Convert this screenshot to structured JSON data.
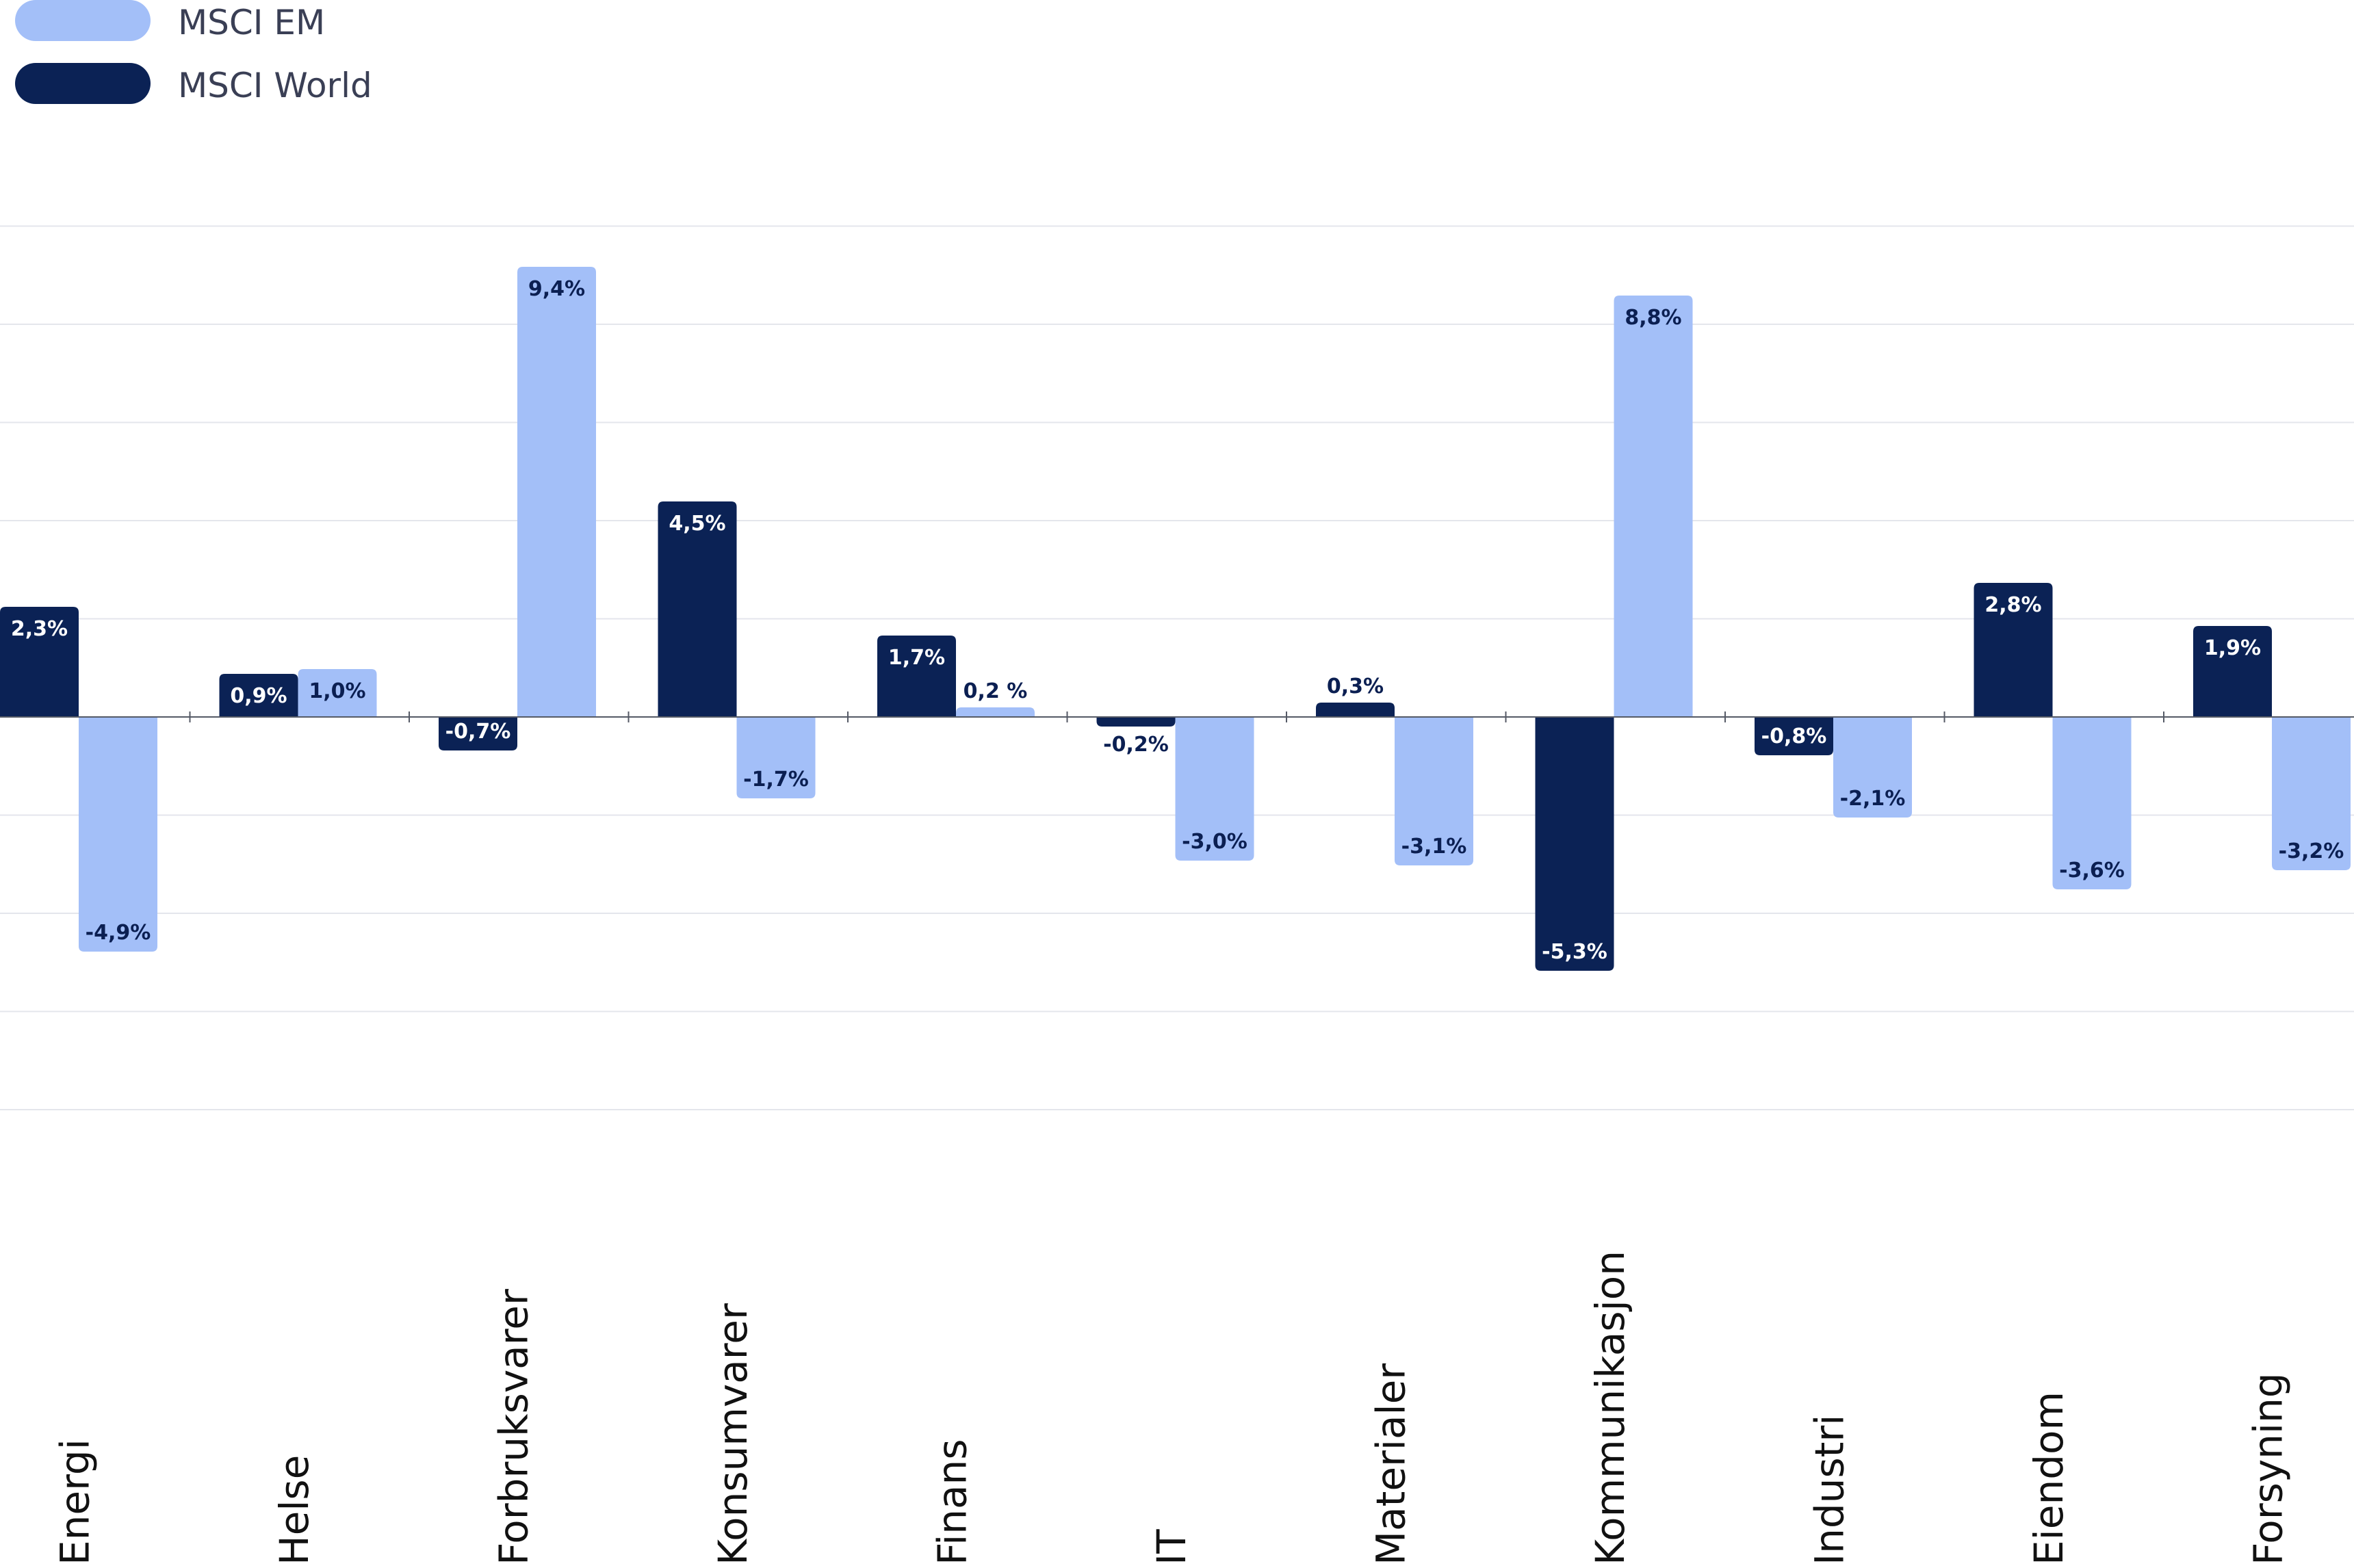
{
  "chart_data": {
    "type": "bar",
    "legend_position": "top-left",
    "grid": true,
    "series": [
      {
        "name": "MSCI EM",
        "color": "#a3bff8",
        "label_color": "#0b1f52",
        "values": [
          -4.9,
          1.0,
          9.4,
          -1.7,
          0.2,
          -3.0,
          -3.1,
          8.8,
          -2.1,
          -3.6,
          -3.2
        ],
        "labels": [
          "-4,9%",
          "1,0%",
          "9,4%",
          "-1,7%",
          "0,2 %",
          "-3,0%",
          "-3,1%",
          "8,8%",
          "-2,1%",
          "-3,6%",
          "-3,2%"
        ]
      },
      {
        "name": "MSCI World",
        "color": "#0b2255",
        "label_color": "#ffffff",
        "values": [
          2.3,
          0.9,
          -0.7,
          4.5,
          1.7,
          -0.2,
          0.3,
          -5.3,
          -0.8,
          2.8,
          1.9
        ],
        "labels": [
          "2,3%",
          "0,9%",
          "-0,7%",
          "4,5%",
          "1,7%",
          "-0,2%",
          "0,3%",
          "-5,3%",
          "-0,8%",
          "2,8%",
          "1,9%"
        ]
      }
    ],
    "categories": [
      "Energi",
      "Helse",
      "Forbruksvarer",
      "Konsumvarer",
      "Finans",
      "IT",
      "Materialer",
      "Kommunikasjon",
      "Industri",
      "Eiendom",
      "Forsyning"
    ]
  }
}
